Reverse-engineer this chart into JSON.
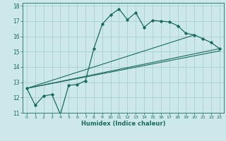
{
  "xlabel": "Humidex (Indice chaleur)",
  "bg_color": "#cce8ea",
  "grid_color": "#aad0d4",
  "line_color": "#1a6b5e",
  "xlim": [
    -0.5,
    23.5
  ],
  "ylim": [
    11,
    18.2
  ],
  "xticks": [
    0,
    1,
    2,
    3,
    4,
    5,
    6,
    7,
    8,
    9,
    10,
    11,
    12,
    13,
    14,
    15,
    16,
    17,
    18,
    19,
    20,
    21,
    22,
    23
  ],
  "yticks": [
    11,
    12,
    13,
    14,
    15,
    16,
    17,
    18
  ],
  "curve1_x": [
    0,
    1,
    2,
    3,
    4,
    5,
    6,
    7,
    8,
    9,
    10,
    11,
    12,
    13,
    14,
    15,
    16,
    17,
    18,
    19,
    20,
    21,
    22,
    23
  ],
  "curve1_y": [
    12.6,
    11.5,
    12.1,
    12.2,
    10.9,
    12.8,
    12.85,
    13.1,
    15.2,
    16.8,
    17.4,
    17.8,
    17.1,
    17.55,
    16.6,
    17.05,
    17.0,
    16.95,
    16.7,
    16.2,
    16.1,
    15.85,
    15.6,
    15.2
  ],
  "line1_x": [
    0,
    23
  ],
  "line1_y": [
    12.6,
    15.2
  ],
  "line2_x": [
    0,
    20
  ],
  "line2_y": [
    12.6,
    16.1
  ],
  "line3_x": [
    0,
    23
  ],
  "line3_y": [
    12.6,
    15.05
  ]
}
